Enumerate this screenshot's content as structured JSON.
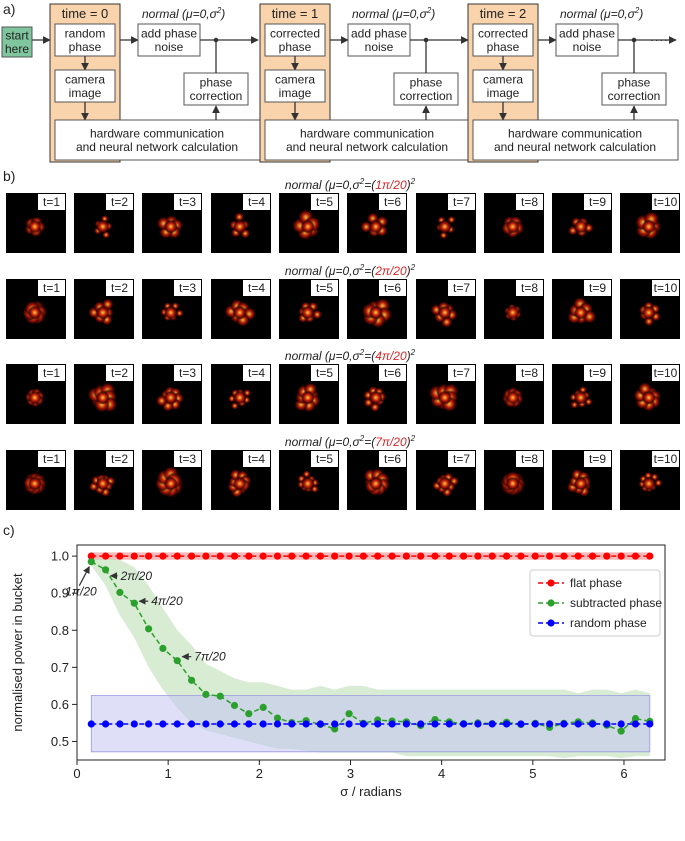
{
  "panel_a": {
    "label": "a)",
    "start": [
      "start",
      "here"
    ],
    "stages": [
      {
        "time": "time = 0",
        "phase": [
          "random",
          "phase"
        ]
      },
      {
        "time": "time = 1",
        "phase": [
          "corrected",
          "phase"
        ]
      },
      {
        "time": "time = 2",
        "phase": [
          "corrected",
          "phase"
        ]
      }
    ],
    "noise_label_prefix": "normal (",
    "noise_label_math": "μ=0,σ",
    "noise_label_sup": "2",
    "noise_label_suffix": ")",
    "add_noise": [
      "add phase",
      "noise"
    ],
    "camera": [
      "camera",
      "image"
    ],
    "correction": [
      "phase",
      "correction"
    ],
    "hardware": [
      "hardware communication",
      "and neural network calculation"
    ],
    "continue": "·····",
    "colors": {
      "stage_fill": "#f8d3ac",
      "start_fill": "#7fc59d",
      "box_border": "#555555"
    }
  },
  "panel_b": {
    "label": "b)",
    "rows": [
      {
        "title_prefix": "normal (μ=0,σ",
        "title_sup": "2",
        "title_eq": "=(",
        "title_value": "1π/20",
        "title_close": ")",
        "title_sup2": "2"
      },
      {
        "title_prefix": "normal (μ=0,σ",
        "title_sup": "2",
        "title_eq": "=(",
        "title_value": "2π/20",
        "title_close": ")",
        "title_sup2": "2"
      },
      {
        "title_prefix": "normal (μ=0,σ",
        "title_sup": "2",
        "title_eq": "=(",
        "title_value": "4π/20",
        "title_close": ")",
        "title_sup2": "2"
      },
      {
        "title_prefix": "normal (μ=0,σ",
        "title_sup": "2",
        "title_eq": "=(",
        "title_value": "7π/20",
        "title_close": ")",
        "title_sup2": "2"
      }
    ],
    "frames": [
      "t=1",
      "t=2",
      "t=3",
      "t=4",
      "t=5",
      "t=6",
      "t=7",
      "t=8",
      "t=9",
      "t=10"
    ],
    "value_color": "#d62728"
  },
  "chart_data": {
    "type": "line",
    "panel_label": "c)",
    "xlabel": "σ / radians",
    "ylabel": "normalised power in bucket",
    "xlim": [
      0,
      6.45
    ],
    "ylim": [
      0.45,
      1.03
    ],
    "xticks": [
      0,
      1,
      2,
      3,
      4,
      5,
      6
    ],
    "yticks": [
      0.5,
      0.6,
      0.7,
      0.8,
      0.9,
      1.0
    ],
    "ytick_labels": [
      "0.5",
      "0.6",
      "0.7",
      "0.8",
      "0.9",
      "1.0"
    ],
    "grid": false,
    "legend_position": "top-right",
    "x": [
      0.157,
      0.314,
      0.471,
      0.628,
      0.785,
      0.942,
      1.1,
      1.257,
      1.414,
      1.571,
      1.728,
      1.885,
      2.042,
      2.199,
      2.356,
      2.513,
      2.67,
      2.827,
      2.985,
      3.142,
      3.299,
      3.456,
      3.613,
      3.77,
      3.927,
      4.084,
      4.241,
      4.398,
      4.555,
      4.712,
      4.869,
      5.027,
      5.184,
      5.341,
      5.498,
      5.655,
      5.812,
      5.969,
      6.126,
      6.283
    ],
    "series": [
      {
        "name": "flat phase",
        "color": "#ff0000",
        "values": [
          1,
          1,
          1,
          1,
          1,
          1,
          1,
          1,
          1,
          1,
          1,
          1,
          1,
          1,
          1,
          1,
          1,
          1,
          1,
          1,
          1,
          1,
          1,
          1,
          1,
          1,
          1,
          1,
          1,
          1,
          1,
          1,
          1,
          1,
          1,
          1,
          1,
          1,
          1,
          1
        ],
        "band_lower": [
          0.99,
          0.99,
          0.99,
          0.99,
          0.99,
          0.99,
          0.99,
          0.99,
          0.99,
          0.99,
          0.99,
          0.99,
          0.99,
          0.99,
          0.99,
          0.99,
          0.99,
          0.99,
          0.99,
          0.99,
          0.99,
          0.99,
          0.99,
          0.99,
          0.99,
          0.99,
          0.99,
          0.99,
          0.99,
          0.99,
          0.99,
          0.99,
          0.99,
          0.99,
          0.99,
          0.99,
          0.99,
          0.99,
          0.99,
          0.99
        ],
        "band_upper": [
          1.01,
          1.01,
          1.01,
          1.01,
          1.01,
          1.01,
          1.01,
          1.01,
          1.01,
          1.01,
          1.01,
          1.01,
          1.01,
          1.01,
          1.01,
          1.01,
          1.01,
          1.01,
          1.01,
          1.01,
          1.01,
          1.01,
          1.01,
          1.01,
          1.01,
          1.01,
          1.01,
          1.01,
          1.01,
          1.01,
          1.01,
          1.01,
          1.01,
          1.01,
          1.01,
          1.01,
          1.01,
          1.01,
          1.01,
          1.01
        ],
        "band_color": "#f08080"
      },
      {
        "name": "subtracted phase",
        "color": "#2ca02c",
        "values": [
          0.985,
          0.963,
          0.902,
          0.873,
          0.804,
          0.751,
          0.718,
          0.665,
          0.627,
          0.622,
          0.597,
          0.575,
          0.592,
          0.563,
          0.551,
          0.556,
          0.546,
          0.534,
          0.575,
          0.549,
          0.558,
          0.555,
          0.553,
          0.543,
          0.559,
          0.553,
          0.548,
          0.55,
          0.548,
          0.552,
          0.546,
          0.549,
          0.538,
          0.549,
          0.553,
          0.55,
          0.544,
          0.528,
          0.562,
          0.554
        ],
        "band_lower": [
          0.975,
          0.92,
          0.84,
          0.78,
          0.7,
          0.64,
          0.59,
          0.55,
          0.53,
          0.52,
          0.51,
          0.5,
          0.49,
          0.48,
          0.48,
          0.475,
          0.47,
          0.47,
          0.47,
          0.47,
          0.47,
          0.47,
          0.46,
          0.46,
          0.46,
          0.46,
          0.46,
          0.46,
          0.46,
          0.46,
          0.46,
          0.46,
          0.46,
          0.455,
          0.46,
          0.46,
          0.46,
          0.455,
          0.46,
          0.46
        ],
        "band_upper": [
          0.99,
          0.995,
          0.99,
          0.97,
          0.92,
          0.86,
          0.8,
          0.76,
          0.71,
          0.69,
          0.67,
          0.66,
          0.66,
          0.65,
          0.64,
          0.64,
          0.65,
          0.64,
          0.65,
          0.65,
          0.64,
          0.64,
          0.64,
          0.64,
          0.64,
          0.64,
          0.64,
          0.64,
          0.64,
          0.64,
          0.64,
          0.64,
          0.64,
          0.64,
          0.63,
          0.64,
          0.64,
          0.63,
          0.64,
          0.63
        ],
        "band_color": "#b8ddb0"
      },
      {
        "name": "random phase",
        "color": "#0000ff",
        "values": [
          0.547,
          0.547,
          0.547,
          0.547,
          0.547,
          0.547,
          0.547,
          0.547,
          0.547,
          0.547,
          0.547,
          0.547,
          0.547,
          0.547,
          0.547,
          0.547,
          0.547,
          0.547,
          0.547,
          0.547,
          0.547,
          0.547,
          0.547,
          0.547,
          0.547,
          0.547,
          0.547,
          0.547,
          0.547,
          0.547,
          0.547,
          0.547,
          0.547,
          0.547,
          0.547,
          0.547,
          0.547,
          0.547,
          0.547,
          0.547
        ],
        "band_lower": [
          0.472,
          0.472,
          0.472,
          0.472,
          0.472,
          0.472,
          0.472,
          0.472,
          0.472,
          0.472,
          0.472,
          0.472,
          0.472,
          0.472,
          0.472,
          0.472,
          0.472,
          0.472,
          0.472,
          0.472,
          0.472,
          0.472,
          0.472,
          0.472,
          0.472,
          0.472,
          0.472,
          0.472,
          0.472,
          0.472,
          0.472,
          0.472,
          0.472,
          0.472,
          0.472,
          0.472,
          0.472,
          0.472,
          0.472,
          0.472
        ],
        "band_upper": [
          0.624,
          0.624,
          0.624,
          0.624,
          0.624,
          0.624,
          0.624,
          0.624,
          0.624,
          0.624,
          0.624,
          0.624,
          0.624,
          0.624,
          0.624,
          0.624,
          0.624,
          0.624,
          0.624,
          0.624,
          0.624,
          0.624,
          0.624,
          0.624,
          0.624,
          0.624,
          0.624,
          0.624,
          0.624,
          0.624,
          0.624,
          0.624,
          0.624,
          0.624,
          0.624,
          0.624,
          0.624,
          0.624,
          0.624,
          0.624
        ],
        "band_color": "#c5c5f2"
      }
    ],
    "annotations": [
      {
        "text": "1π/20",
        "x": 0.157,
        "y": 0.985
      },
      {
        "text": "2π/20",
        "x": 0.314,
        "y": 0.963
      },
      {
        "text": "4π/20",
        "x": 0.628,
        "y": 0.873
      },
      {
        "text": "7π/20",
        "x": 1.1,
        "y": 0.718
      }
    ]
  }
}
